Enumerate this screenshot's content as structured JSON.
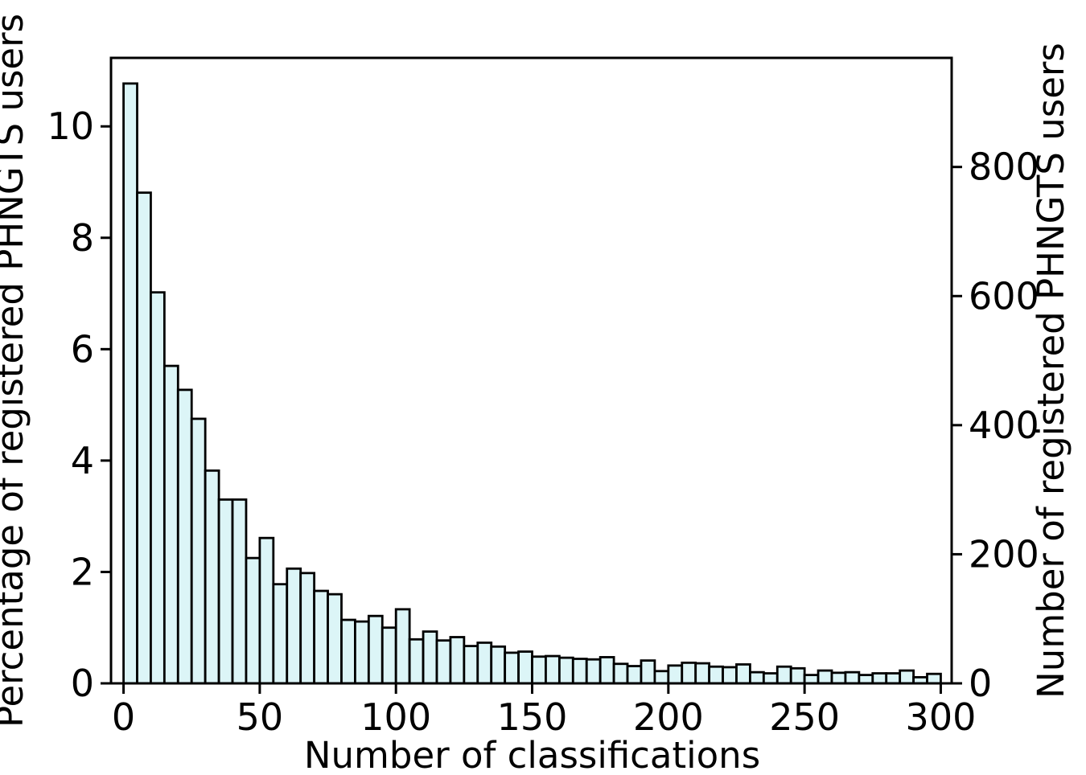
{
  "figure": {
    "background": "#ffffff",
    "bar_fill": "#dcf5f7",
    "bar_edge": "#000000",
    "axis_color": "#000000"
  },
  "chart_data": {
    "type": "bar",
    "subtype": "histogram",
    "title": "",
    "xlabel": "Number of classifications",
    "ylabel_left": "Percentage of registered PHNGTS users",
    "ylabel_right": "Number of registered PHNGTS users",
    "bin_start": 0,
    "bin_width": 5,
    "values_percent": [
      10.77,
      8.81,
      7.02,
      5.7,
      5.27,
      4.75,
      3.82,
      3.3,
      3.3,
      2.25,
      2.61,
      1.78,
      2.06,
      1.98,
      1.66,
      1.6,
      1.14,
      1.11,
      1.21,
      1.0,
      1.33,
      0.79,
      0.93,
      0.77,
      0.83,
      0.67,
      0.73,
      0.66,
      0.55,
      0.57,
      0.48,
      0.49,
      0.46,
      0.44,
      0.43,
      0.47,
      0.35,
      0.31,
      0.41,
      0.22,
      0.32,
      0.37,
      0.36,
      0.3,
      0.29,
      0.34,
      0.2,
      0.18,
      0.3,
      0.27,
      0.15,
      0.23,
      0.19,
      0.2,
      0.15,
      0.18,
      0.18,
      0.23,
      0.11,
      0.17
    ],
    "x_ticks": [
      0,
      50,
      100,
      150,
      200,
      250,
      300
    ],
    "y_ticks_left": [
      0,
      2,
      4,
      6,
      8,
      10
    ],
    "y_ticks_right": [
      0,
      200,
      400,
      600,
      800
    ],
    "xlim": [
      -4.6,
      304.0
    ],
    "ylim_left": [
      0,
      11.23
    ],
    "ylim_right": [
      0,
      969
    ],
    "grid": false,
    "legend": null
  }
}
